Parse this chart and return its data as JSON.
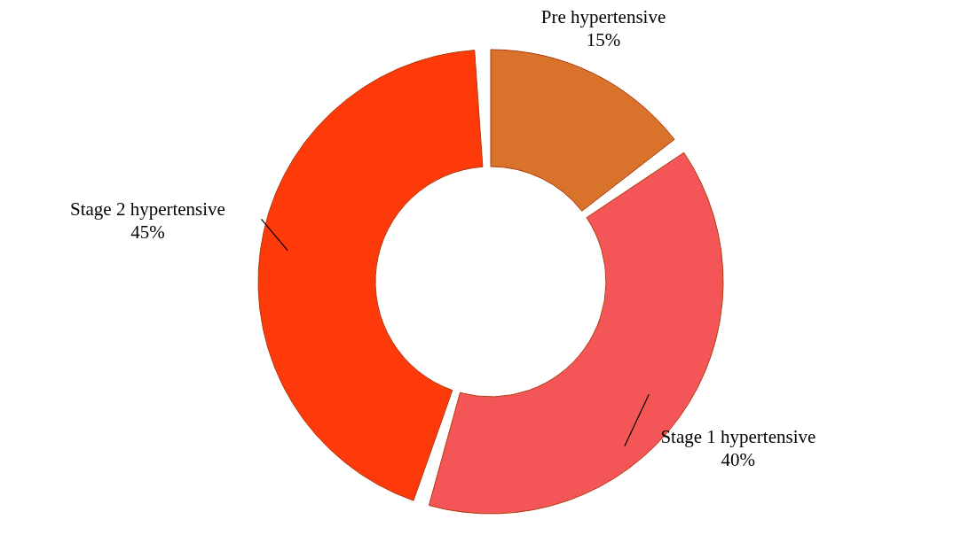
{
  "chart_data": {
    "type": "donut",
    "categories": [
      "Pre hypertensive",
      "Stage 1 hypertensive",
      "Stage 2 hypertensive"
    ],
    "values": [
      15,
      40,
      45
    ],
    "value_labels": [
      "15%",
      "40%",
      "45%"
    ],
    "colors": [
      "#d9732b",
      "#f45658",
      "#ff3a0a"
    ],
    "legend": false
  }
}
